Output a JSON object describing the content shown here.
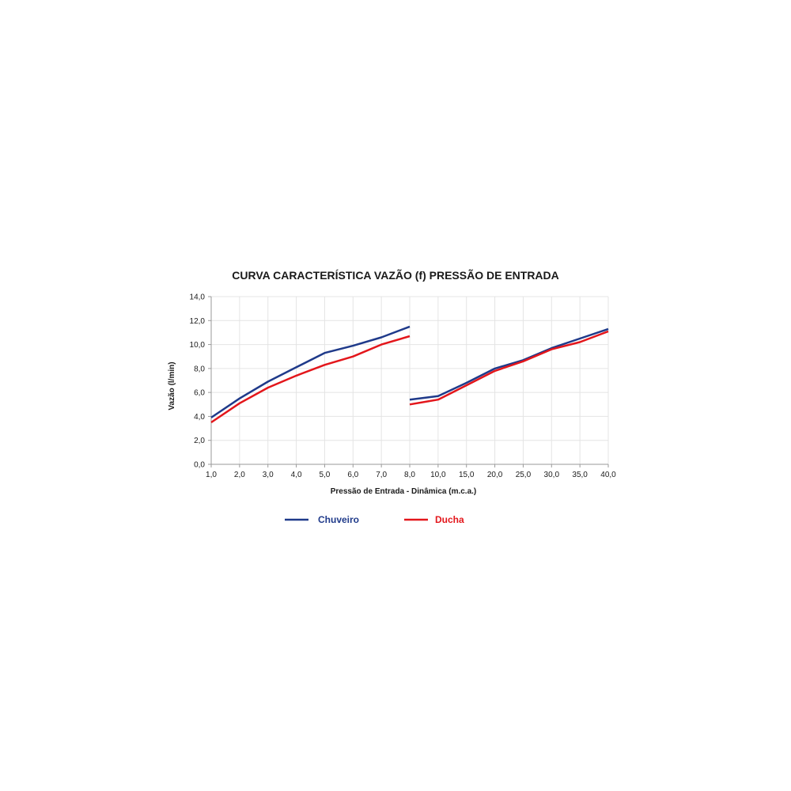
{
  "chart_data": {
    "type": "line",
    "title": "CURVA CARACTERÍSTICA VAZÃO (f) PRESSÃO DE ENTRADA",
    "xlabel": "Pressão de Entrada - Dinâmica (m.c.a.)",
    "ylabel": "Vazão (l/min)",
    "ylim": [
      0,
      14
    ],
    "yticks": [
      "0,0",
      "2,0",
      "4,0",
      "6,0",
      "8,0",
      "10,0",
      "12,0",
      "14,0"
    ],
    "categories": [
      "1,0",
      "2,0",
      "3,0",
      "4,0",
      "5,0",
      "6,0",
      "7,0",
      "8,0",
      "10,0",
      "15,0",
      "20,0",
      "25,0",
      "30,0",
      "35,0",
      "40,0"
    ],
    "grid": true,
    "legend_position": "bottom",
    "series": [
      {
        "name": "Chuveiro",
        "color": "#1f3a8a",
        "segments": [
          [
            3.9,
            5.5,
            6.9,
            8.1,
            9.3,
            9.9,
            10.6,
            11.5
          ],
          [
            5.4,
            5.7,
            6.8,
            8.0,
            8.7,
            9.7,
            10.5,
            11.3
          ]
        ]
      },
      {
        "name": "Ducha",
        "color": "#e3161b",
        "segments": [
          [
            3.5,
            5.1,
            6.4,
            7.4,
            8.3,
            9.0,
            10.0,
            10.7
          ],
          [
            5.0,
            5.4,
            6.6,
            7.8,
            8.6,
            9.6,
            10.2,
            11.1
          ]
        ]
      }
    ]
  }
}
